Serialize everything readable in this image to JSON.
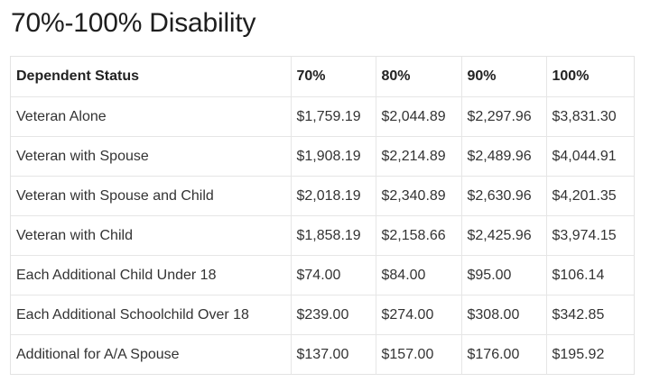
{
  "page": {
    "title": "70%-100% Disability"
  },
  "table": {
    "headers": [
      "Dependent Status",
      "70%",
      "80%",
      "90%",
      "100%"
    ],
    "rows": [
      [
        "Veteran Alone",
        "$1,759.19",
        "$2,044.89",
        "$2,297.96",
        "$3,831.30"
      ],
      [
        "Veteran with Spouse",
        "$1,908.19",
        "$2,214.89",
        "$2,489.96",
        "$4,044.91"
      ],
      [
        "Veteran with Spouse and Child",
        "$2,018.19",
        "$2,340.89",
        "$2,630.96",
        "$4,201.35"
      ],
      [
        "Veteran with Child",
        "$1,858.19",
        "$2,158.66",
        "$2,425.96",
        "$3,974.15"
      ],
      [
        "Each Additional Child Under 18",
        "$74.00",
        "$84.00",
        "$95.00",
        "$106.14"
      ],
      [
        "Each Additional Schoolchild Over 18",
        "$239.00",
        "$274.00",
        "$308.00",
        "$342.85"
      ],
      [
        "Additional for A/A Spouse",
        "$137.00",
        "$157.00",
        "$176.00",
        "$195.92"
      ]
    ]
  }
}
